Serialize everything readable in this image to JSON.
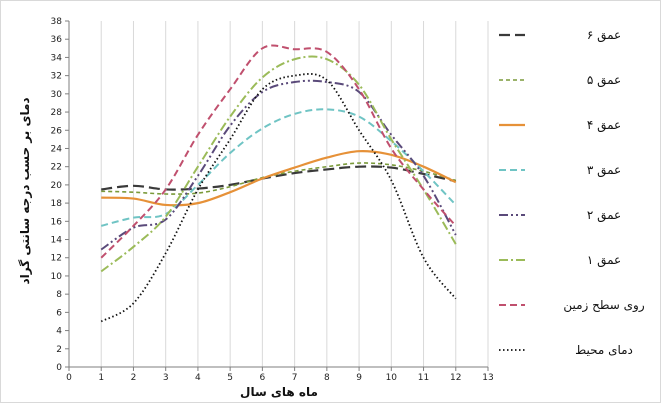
{
  "chart_data": {
    "type": "line",
    "xlabel": "ماه های سال",
    "ylabel": "دمای بر حسب درجه سانتی گراد",
    "xlim": [
      0,
      13
    ],
    "ylim": [
      0,
      38
    ],
    "x_ticks": [
      0,
      1,
      2,
      3,
      4,
      5,
      6,
      7,
      8,
      9,
      10,
      11,
      12,
      13
    ],
    "y_ticks": [
      0,
      2,
      4,
      6,
      8,
      10,
      12,
      14,
      16,
      18,
      20,
      22,
      24,
      26,
      28,
      30,
      32,
      34,
      36,
      38
    ],
    "grid": "vertical",
    "legend_position": "right",
    "x": [
      1,
      2,
      3,
      4,
      5,
      6,
      7,
      8,
      9,
      10,
      11,
      12
    ],
    "series": [
      {
        "name": "عمق ۶",
        "color": "#3a3a3a",
        "style": "longdash",
        "width": 2.2,
        "values": [
          19.5,
          19.9,
          19.5,
          19.6,
          20.0,
          20.7,
          21.3,
          21.7,
          22.0,
          21.9,
          21.2,
          20.4
        ]
      },
      {
        "name": "عمق ۵",
        "color": "#7a9a3a",
        "style": "shortdash",
        "width": 1.6,
        "values": [
          19.3,
          19.2,
          19.0,
          19.1,
          19.8,
          20.8,
          21.5,
          22.0,
          22.4,
          22.2,
          21.5,
          20.5
        ]
      },
      {
        "name": "عمق ۴",
        "color": "#e69138",
        "style": "solid",
        "width": 2.2,
        "values": [
          18.6,
          18.5,
          17.8,
          18.0,
          19.2,
          20.7,
          21.9,
          23.0,
          23.7,
          23.3,
          22.0,
          20.3
        ]
      },
      {
        "name": "عمق ۳",
        "color": "#6fc4c4",
        "style": "dashed",
        "width": 2.0,
        "values": [
          15.5,
          16.4,
          16.8,
          20.0,
          23.5,
          26.2,
          27.8,
          28.3,
          27.5,
          24.8,
          21.5,
          17.8
        ]
      },
      {
        "name": "عمق ۲",
        "color": "#5a4a7a",
        "style": "dashdotdot",
        "width": 2.0,
        "values": [
          12.9,
          15.3,
          16.2,
          21.0,
          26.5,
          30.2,
          31.3,
          31.3,
          30.2,
          25.5,
          21.0,
          14.5
        ]
      },
      {
        "name": "عمق ۱",
        "color": "#9bbb59",
        "style": "dashdot",
        "width": 2.0,
        "values": [
          10.5,
          13.2,
          16.5,
          22.0,
          27.5,
          31.8,
          33.8,
          33.8,
          31.0,
          25.0,
          19.5,
          13.5
        ]
      },
      {
        "name": "روی سطح زمین",
        "color": "#c0506e",
        "style": "dashed",
        "width": 2.0,
        "values": [
          12.0,
          15.5,
          19.5,
          25.5,
          30.5,
          35.0,
          34.9,
          34.6,
          30.5,
          24.0,
          19.5,
          15.5
        ]
      },
      {
        "name": "دمای محیط",
        "color": "#111111",
        "style": "dotted",
        "width": 1.8,
        "values": [
          5.0,
          7.0,
          12.5,
          19.5,
          25.0,
          30.5,
          32.0,
          31.5,
          26.0,
          20.5,
          12.0,
          7.5
        ]
      }
    ]
  }
}
